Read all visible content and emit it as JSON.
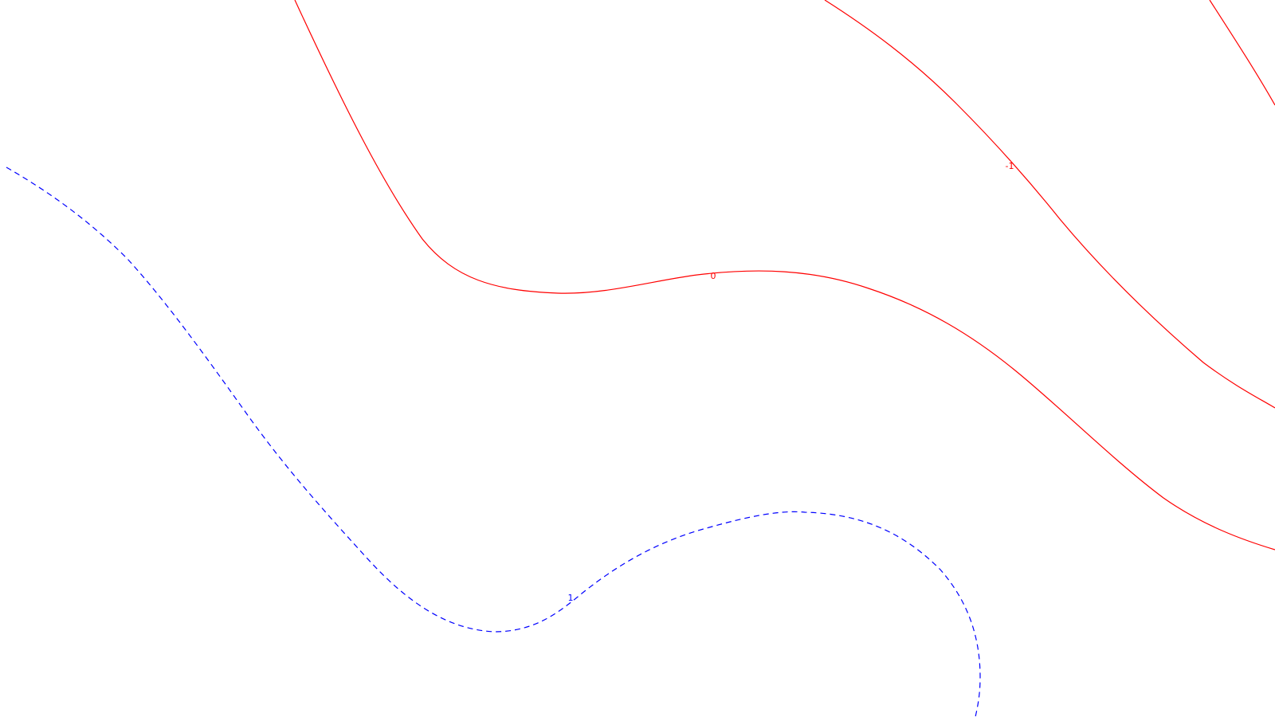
{
  "contours": [
    {
      "id": "contour-zero",
      "level_label": "0",
      "color": "#ff0000",
      "style": "solid"
    },
    {
      "id": "contour-minus-one",
      "level_label": "-1",
      "color": "#ff0000",
      "style": "solid"
    },
    {
      "id": "contour-minus-two",
      "level_label": "",
      "color": "#ff0000",
      "style": "solid"
    },
    {
      "id": "contour-one",
      "level_label": "1",
      "color": "#0000ff",
      "style": "dashed"
    }
  ]
}
